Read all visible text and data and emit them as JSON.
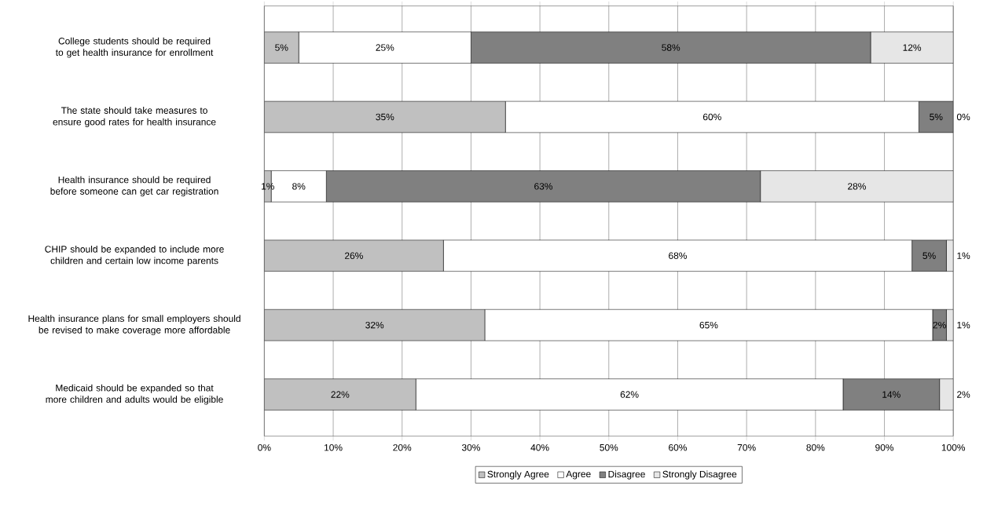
{
  "chart_data": {
    "type": "bar",
    "orientation": "horizontal",
    "stacked": true,
    "categories": [
      "College students should be required to get health insurance for enrollment",
      "The state should take measures to ensure good rates for health insurance",
      "Health insurance should be required before someone can get car registration",
      "CHIP should be expanded to include more children and certain low income parents",
      "Health insurance plans for small employers should be revised to make coverage more affordable",
      "Medicaid should be expanded so that more children and adults would be eligible"
    ],
    "series": [
      {
        "name": "Strongly Agree",
        "color": "#c0c0c0",
        "values": [
          5,
          35,
          1,
          26,
          32,
          22
        ],
        "value_labels": [
          "5%",
          "35%",
          "1%",
          "26%",
          "32%",
          "22%"
        ]
      },
      {
        "name": "Agree",
        "color": "#ffffff",
        "values": [
          25,
          60,
          8,
          68,
          65,
          62
        ],
        "value_labels": [
          "25%",
          "60%",
          "8%",
          "68%",
          "65%",
          "62%"
        ]
      },
      {
        "name": "Disagree",
        "color": "#808080",
        "values": [
          58,
          5,
          63,
          5,
          2,
          14
        ],
        "value_labels": [
          "58%",
          "5%",
          "63%",
          "5%",
          "2%",
          "14%"
        ]
      },
      {
        "name": "Strongly Disagree",
        "color": "#e6e6e6",
        "values": [
          12,
          0,
          28,
          1,
          1,
          2
        ],
        "value_labels": [
          "12%",
          "0%",
          "28%",
          "1%",
          "1%",
          "2%"
        ]
      }
    ],
    "xlim": [
      0,
      100
    ],
    "xticks": [
      {
        "value": 0,
        "label": "0%"
      },
      {
        "value": 10,
        "label": "10%"
      },
      {
        "value": 20,
        "label": "20%"
      },
      {
        "value": 30,
        "label": "30%"
      },
      {
        "value": 40,
        "label": "40%"
      },
      {
        "value": 50,
        "label": "50%"
      },
      {
        "value": 60,
        "label": "60%"
      },
      {
        "value": 70,
        "label": "70%"
      },
      {
        "value": 80,
        "label": "80%"
      },
      {
        "value": 90,
        "label": "90%"
      },
      {
        "value": 100,
        "label": "100%"
      }
    ],
    "grid": "x",
    "legend": "bottom"
  }
}
